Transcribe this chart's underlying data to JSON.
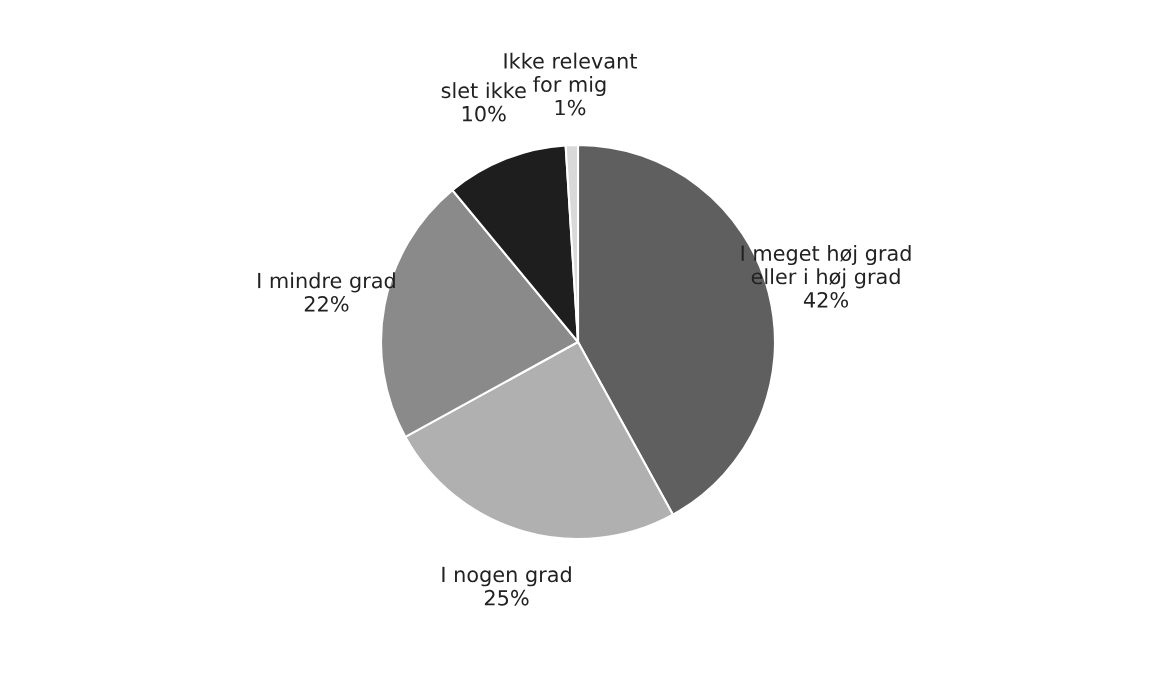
{
  "chart_data": {
    "type": "pie",
    "categories": [
      "I meget høj grad\neller i høj grad",
      "I nogen grad",
      "I mindre grad",
      "slet ikke",
      "Ikke relevant\nfor mig"
    ],
    "values": [
      42,
      25,
      22,
      10,
      1
    ],
    "value_labels": [
      "42%",
      "25%",
      "22%",
      "10%",
      "1%"
    ],
    "colors": [
      "#5f5f5f",
      "#b0b0b0",
      "#8a8a8a",
      "#1e1e1e",
      "#d9d9d9"
    ]
  }
}
